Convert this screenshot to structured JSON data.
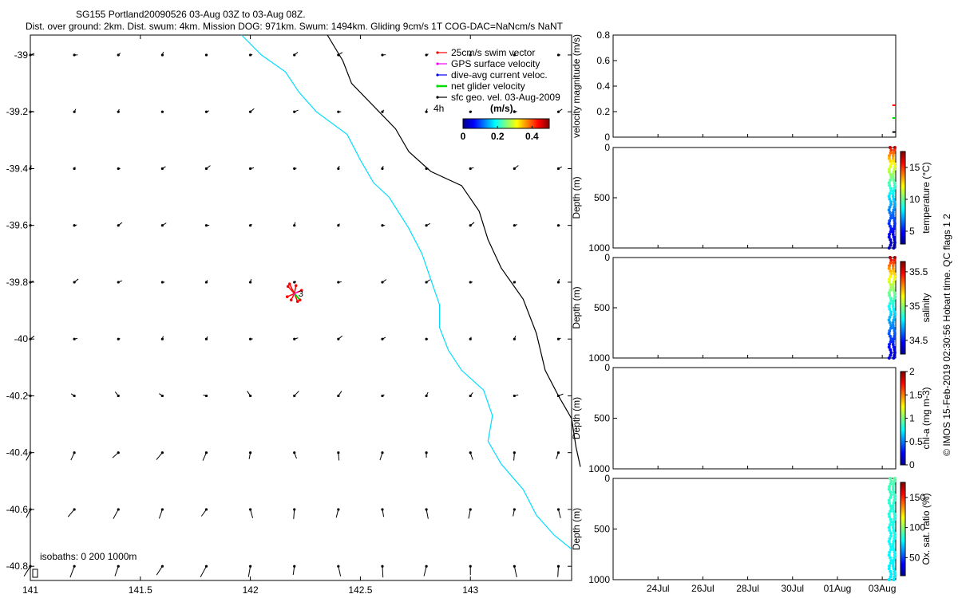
{
  "title_lines": [
    "SG155 Portland20090526 03-Aug 03Z to 03-Aug 08Z.",
    "Dist. over ground: 2km. Dist. swum: 4km. Mission DOG: 971km. Swum: 1494km. Gliding 9cm/s 1T COG-DAC=NaNcm/s NaNT"
  ],
  "credit": "© IMOS 15-Feb-2019 02:30:56 Hobart time. QC flags 1  2",
  "colors": {
    "swim": "#ff0000",
    "gps": "#ff00ff",
    "dac": "#0000ff",
    "net": "#00dd00",
    "sfc": "#000000",
    "isobath_200": "#00ddff",
    "isobath_1000": "#000000"
  },
  "chart_data": [
    {
      "id": "map",
      "type": "scatter",
      "title": "",
      "x_ticks": [
        "141",
        "141.5",
        "142",
        "142.5",
        "143"
      ],
      "y_ticks": [
        "-39",
        "-39.2",
        "-39.4",
        "-39.6",
        "-39.8",
        "-40",
        "-40.2",
        "-40.4",
        "-40.6",
        "-40.8"
      ],
      "xlim": [
        141.0,
        143.46
      ],
      "ylim": [
        -40.85,
        -38.93
      ],
      "legend": {
        "placement": "top-right",
        "entries": [
          {
            "label": "25cm/s swim vector",
            "color": "#ff0000"
          },
          {
            "label": "GPS surface velocity",
            "color": "#ff00ff"
          },
          {
            "label": "dive-avg current veloc.",
            "color": "#0000ff"
          },
          {
            "label": "net glider velocity",
            "color": "#00dd00"
          },
          {
            "label": "sfc geo. vel. 03-Aug-2009",
            "color": "#000000"
          }
        ],
        "time_label": "4h"
      },
      "colorbar": {
        "title": "(m/s).",
        "ticks": [
          "0",
          "0.2",
          "0.4"
        ],
        "range": [
          0,
          0.5
        ]
      },
      "isobath_label": "isobaths: 0   200   1000m",
      "glider_marker": "3",
      "glider_position": [
        142.2,
        -39.84
      ],
      "isobath_200": [
        [
          141.96,
          -38.93
        ],
        [
          142.05,
          -39.0
        ],
        [
          142.16,
          -39.06
        ],
        [
          142.22,
          -39.13
        ],
        [
          142.3,
          -39.2
        ],
        [
          142.44,
          -39.28
        ],
        [
          142.5,
          -39.37
        ],
        [
          142.56,
          -39.45
        ],
        [
          142.63,
          -39.5
        ],
        [
          142.72,
          -39.61
        ],
        [
          142.78,
          -39.7
        ],
        [
          142.82,
          -39.79
        ],
        [
          142.86,
          -39.88
        ],
        [
          142.86,
          -39.96
        ],
        [
          142.9,
          -40.04
        ],
        [
          142.96,
          -40.11
        ],
        [
          143.06,
          -40.18
        ],
        [
          143.1,
          -40.27
        ],
        [
          143.08,
          -40.36
        ],
        [
          143.14,
          -40.44
        ],
        [
          143.24,
          -40.53
        ],
        [
          143.3,
          -40.62
        ],
        [
          143.38,
          -40.69
        ],
        [
          143.46,
          -40.74
        ]
      ],
      "isobath_1000": [
        [
          142.35,
          -38.93
        ],
        [
          142.42,
          -39.02
        ],
        [
          142.46,
          -39.1
        ],
        [
          142.56,
          -39.18
        ],
        [
          142.66,
          -39.26
        ],
        [
          142.72,
          -39.34
        ],
        [
          142.82,
          -39.41
        ],
        [
          142.96,
          -39.46
        ],
        [
          143.04,
          -39.55
        ],
        [
          143.08,
          -39.65
        ],
        [
          143.14,
          -39.75
        ],
        [
          143.24,
          -39.86
        ],
        [
          143.3,
          -39.98
        ],
        [
          143.34,
          -40.11
        ],
        [
          143.4,
          -40.2
        ],
        [
          143.46,
          -40.28
        ],
        [
          143.48,
          -40.38
        ],
        [
          143.5,
          -40.45
        ]
      ]
    },
    {
      "id": "velocity",
      "type": "scatter",
      "ylabel": "velocity magnitude (m/s)",
      "ylim": [
        0,
        0.8
      ],
      "y_ticks": [
        0,
        0.2,
        0.4,
        0.6,
        0.8
      ],
      "series": [
        {
          "color": "#ff0000",
          "x": [
            12.45,
            12.6
          ],
          "y": [
            0.25,
            0.25
          ]
        },
        {
          "color": "#00dd00",
          "x": [
            12.45,
            12.6
          ],
          "y": [
            0.15,
            0.15
          ]
        },
        {
          "color": "#000000",
          "x": [
            12.45,
            12.6
          ],
          "y": [
            0.04,
            0.04
          ]
        }
      ]
    },
    {
      "id": "temperature",
      "type": "scatter",
      "ylabel": "Depth (m)",
      "ylim": [
        1000,
        0
      ],
      "y_ticks": [
        0,
        500,
        1000
      ],
      "colorbar": {
        "label": "temperature (°C)",
        "ticks": [
          5,
          10,
          15
        ],
        "range": [
          3,
          17.5
        ]
      },
      "profile": {
        "depth_max": 1000,
        "surface_value": 16.5,
        "deep_value": 3.5
      }
    },
    {
      "id": "salinity",
      "type": "scatter",
      "ylabel": "Depth (m)",
      "ylim": [
        1000,
        0
      ],
      "y_ticks": [
        0,
        500,
        1000
      ],
      "colorbar": {
        "label": "salinity",
        "ticks": [
          34.5,
          35,
          35.5
        ],
        "range": [
          34.3,
          35.65
        ]
      },
      "profile": {
        "depth_max": 1000,
        "surface_value": 35.6,
        "deep_value": 34.4
      }
    },
    {
      "id": "chla",
      "type": "scatter",
      "ylabel": "Depth (m)",
      "ylim": [
        1000,
        0
      ],
      "y_ticks": [
        0,
        500,
        1000
      ],
      "colorbar": {
        "label": "chl-a (mg m-3)",
        "ticks": [
          0,
          0.5,
          1,
          1.5,
          2
        ],
        "range": [
          0,
          2
        ]
      }
    },
    {
      "id": "oxygen",
      "type": "scatter",
      "ylabel": "Depth (m)",
      "ylim": [
        1000,
        0
      ],
      "y_ticks": [
        0,
        500,
        1000
      ],
      "colorbar": {
        "label": "Ox. sat. ratio (%)",
        "ticks": [
          50,
          100,
          150
        ],
        "range": [
          20,
          175
        ]
      },
      "profile": {
        "depth_max": 1000,
        "surface_value": 92,
        "deep_value": 75
      }
    },
    {
      "id": "time_axis",
      "type": "line",
      "x_ticks": [
        "24Jul",
        "26Jul",
        "28Jul",
        "30Jul",
        "01Aug",
        "03Aug"
      ],
      "xlim": [
        "22-Jul",
        "03-Aug 12Z"
      ]
    }
  ]
}
